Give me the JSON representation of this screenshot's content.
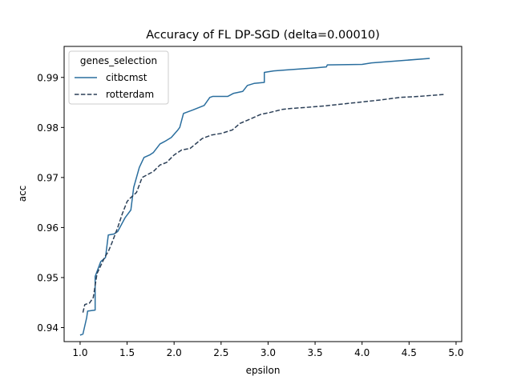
{
  "chart_data": {
    "type": "line",
    "title": "Accuracy of FL DP-SGD (delta=0.00010)",
    "xlabel": "epsilon",
    "ylabel": "acc",
    "xlim": [
      0.83,
      5.06
    ],
    "ylim": [
      0.9372,
      0.9962
    ],
    "xticks": [
      "1.0",
      "1.5",
      "2.0",
      "2.5",
      "3.0",
      "3.5",
      "4.0",
      "4.5",
      "5.0"
    ],
    "xtick_values": [
      1.0,
      1.5,
      2.0,
      2.5,
      3.0,
      3.5,
      4.0,
      4.5,
      5.0
    ],
    "yticks": [
      "0.94",
      "0.95",
      "0.96",
      "0.97",
      "0.98",
      "0.99"
    ],
    "ytick_values": [
      0.94,
      0.95,
      0.96,
      0.97,
      0.98,
      0.99
    ],
    "grid": false,
    "legend": {
      "title": "genes_selection",
      "placement": "top-left"
    },
    "series": [
      {
        "name": "citbcmst",
        "style": "solid",
        "color": "#2a6e9e",
        "x": [
          1.0,
          1.03,
          1.07,
          1.08,
          1.12,
          1.16,
          1.16,
          1.18,
          1.22,
          1.27,
          1.3,
          1.36,
          1.4,
          1.48,
          1.54,
          1.57,
          1.63,
          1.68,
          1.74,
          1.78,
          1.85,
          1.9,
          1.97,
          2.04,
          2.06,
          2.1,
          2.2,
          2.32,
          2.38,
          2.41,
          2.57,
          2.63,
          2.73,
          2.78,
          2.85,
          2.96,
          2.96,
          3.06,
          3.2,
          3.35,
          3.5,
          3.62,
          3.63,
          4.0,
          4.1,
          4.72
        ],
        "y": [
          0.9385,
          0.9387,
          0.942,
          0.9433,
          0.9434,
          0.9435,
          0.9502,
          0.9512,
          0.9532,
          0.954,
          0.9585,
          0.9587,
          0.9592,
          0.962,
          0.9635,
          0.968,
          0.972,
          0.974,
          0.9745,
          0.975,
          0.9767,
          0.9772,
          0.978,
          0.9795,
          0.98,
          0.9828,
          0.9835,
          0.9844,
          0.986,
          0.9862,
          0.9862,
          0.9868,
          0.9872,
          0.9884,
          0.9888,
          0.989,
          0.991,
          0.9913,
          0.9915,
          0.9917,
          0.9919,
          0.9921,
          0.9925,
          0.9926,
          0.9929,
          0.9938
        ]
      },
      {
        "name": "rotterdam",
        "style": "dashed",
        "color": "#2b3f57",
        "x": [
          1.03,
          1.05,
          1.1,
          1.14,
          1.18,
          1.22,
          1.26,
          1.3,
          1.34,
          1.4,
          1.45,
          1.5,
          1.54,
          1.6,
          1.66,
          1.7,
          1.78,
          1.85,
          1.92,
          2.0,
          2.08,
          2.17,
          2.3,
          2.4,
          2.5,
          2.62,
          2.7,
          2.8,
          2.92,
          3.02,
          3.15,
          3.25,
          3.4,
          3.6,
          3.75,
          3.9,
          4.05,
          4.2,
          4.4,
          4.6,
          4.87
        ],
        "y": [
          0.943,
          0.9446,
          0.9449,
          0.946,
          0.9508,
          0.9524,
          0.954,
          0.9552,
          0.957,
          0.96,
          0.9628,
          0.9652,
          0.966,
          0.967,
          0.97,
          0.9704,
          0.9712,
          0.9725,
          0.973,
          0.9745,
          0.9755,
          0.9758,
          0.9778,
          0.9785,
          0.9788,
          0.9795,
          0.9808,
          0.9816,
          0.9826,
          0.983,
          0.9836,
          0.9838,
          0.984,
          0.9843,
          0.9846,
          0.9849,
          0.9852,
          0.9855,
          0.986,
          0.9862,
          0.9866
        ]
      }
    ]
  }
}
